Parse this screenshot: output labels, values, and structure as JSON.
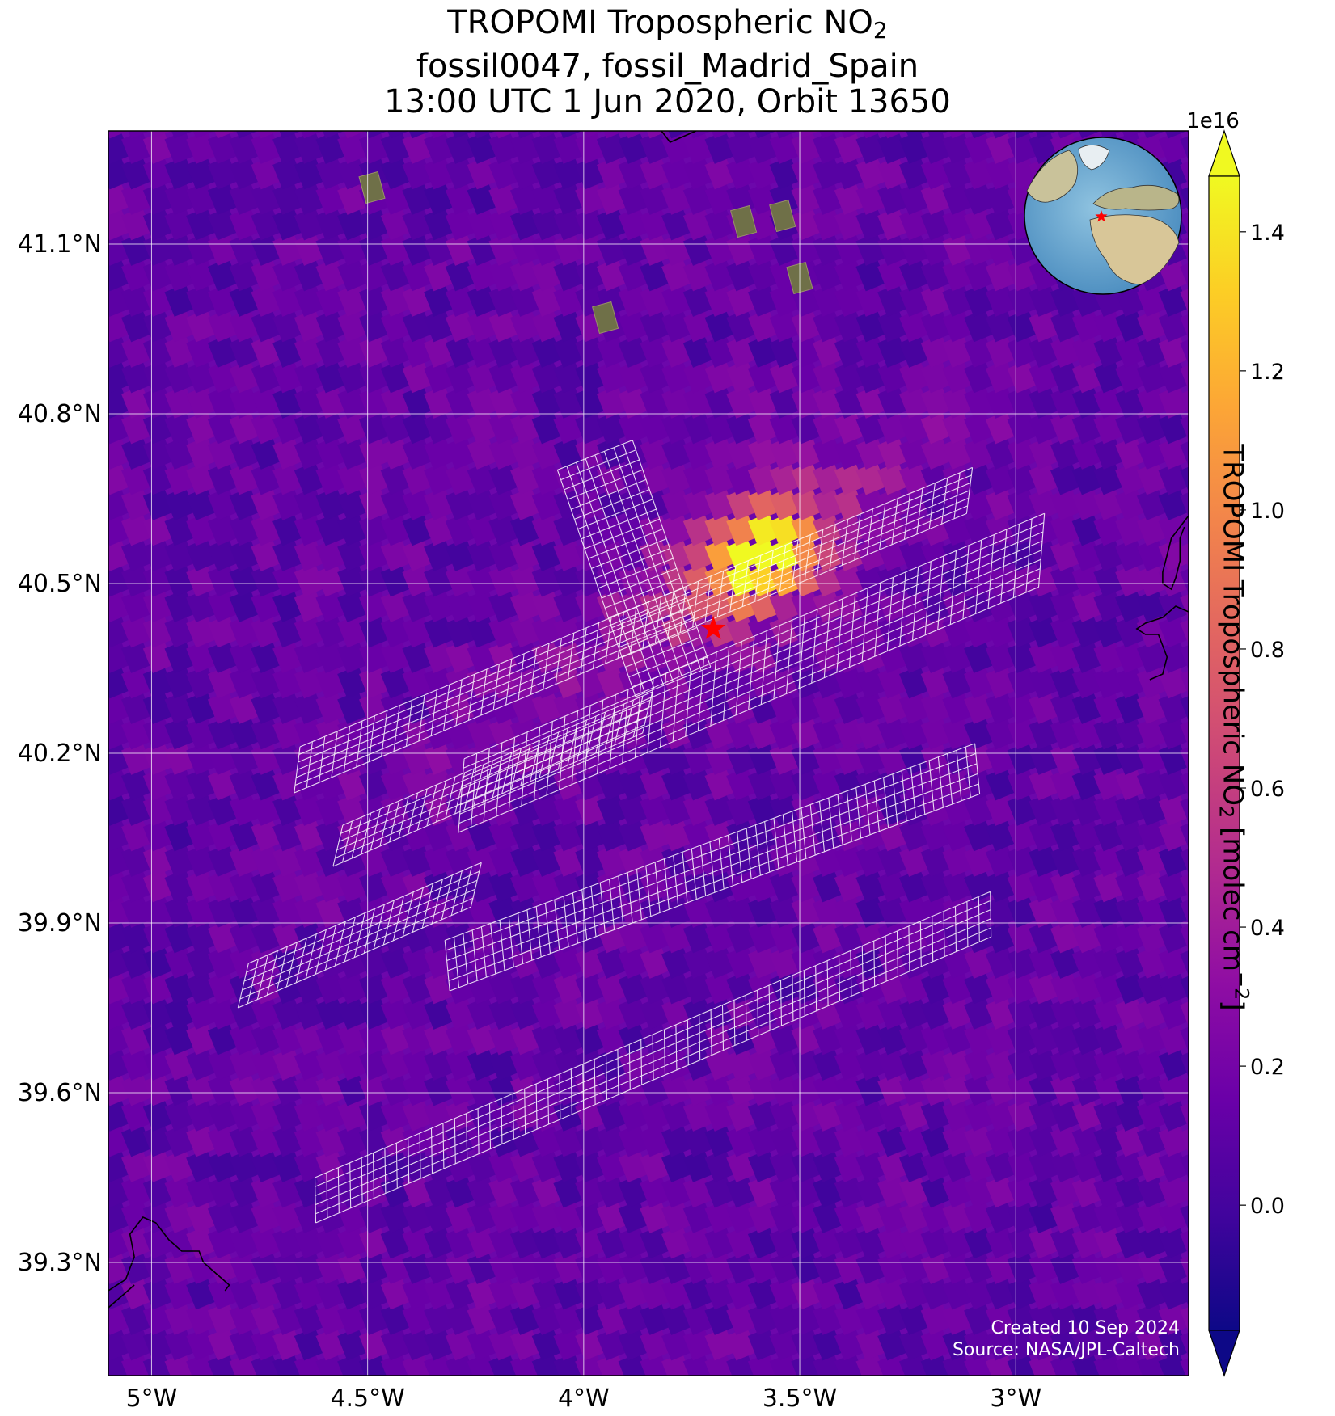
{
  "title": {
    "line1": "TROPOMI Tropospheric NO",
    "line1_sub": "2",
    "line2": "fossil0047, fossil_Madrid_Spain",
    "line3": "13:00 UTC 1 Jun 2020, Orbit 13650"
  },
  "map": {
    "lon_range": [
      -5.1,
      -2.6
    ],
    "lat_range": [
      39.1,
      41.3
    ],
    "lat_ticks": [
      {
        "value": 41.1,
        "label": "41.1°N"
      },
      {
        "value": 40.8,
        "label": "40.8°N"
      },
      {
        "value": 40.5,
        "label": "40.5°N"
      },
      {
        "value": 40.2,
        "label": "40.2°N"
      },
      {
        "value": 39.9,
        "label": "39.9°N"
      },
      {
        "value": 39.6,
        "label": "39.6°N"
      },
      {
        "value": 39.3,
        "label": "39.3°N"
      }
    ],
    "lon_ticks": [
      {
        "value": -5.0,
        "label": "5°W"
      },
      {
        "value": -4.5,
        "label": "4.5°W"
      },
      {
        "value": -4.0,
        "label": "4°W"
      },
      {
        "value": -3.5,
        "label": "3.5°W"
      },
      {
        "value": -3.0,
        "label": "3°W"
      }
    ],
    "source_marker": {
      "lon": -3.7,
      "lat": 40.42,
      "color": "#ff0000"
    },
    "hotspot": {
      "lon": -3.62,
      "lat": 40.52
    },
    "grid_color": "#ffffff",
    "inset": "globe"
  },
  "colorbar": {
    "label": "TROPOMI Tropospheric NO",
    "label_sub": "2",
    "label_rest": " [molec cm",
    "label_sup": "−2",
    "label_end": "]",
    "scale_label": "1e16",
    "range": [
      -0.18,
      1.48
    ],
    "ticks": [
      {
        "value": 0.0,
        "label": "0.0"
      },
      {
        "value": 0.2,
        "label": "0.2"
      },
      {
        "value": 0.4,
        "label": "0.4"
      },
      {
        "value": 0.6,
        "label": "0.6"
      },
      {
        "value": 0.8,
        "label": "0.8"
      },
      {
        "value": 1.0,
        "label": "1.0"
      },
      {
        "value": 1.2,
        "label": "1.2"
      },
      {
        "value": 1.4,
        "label": "1.4"
      }
    ],
    "colormap": "plasma"
  },
  "credit": {
    "line1": "Created 10 Sep 2024",
    "line2": "Source: NASA/JPL-Caltech"
  }
}
